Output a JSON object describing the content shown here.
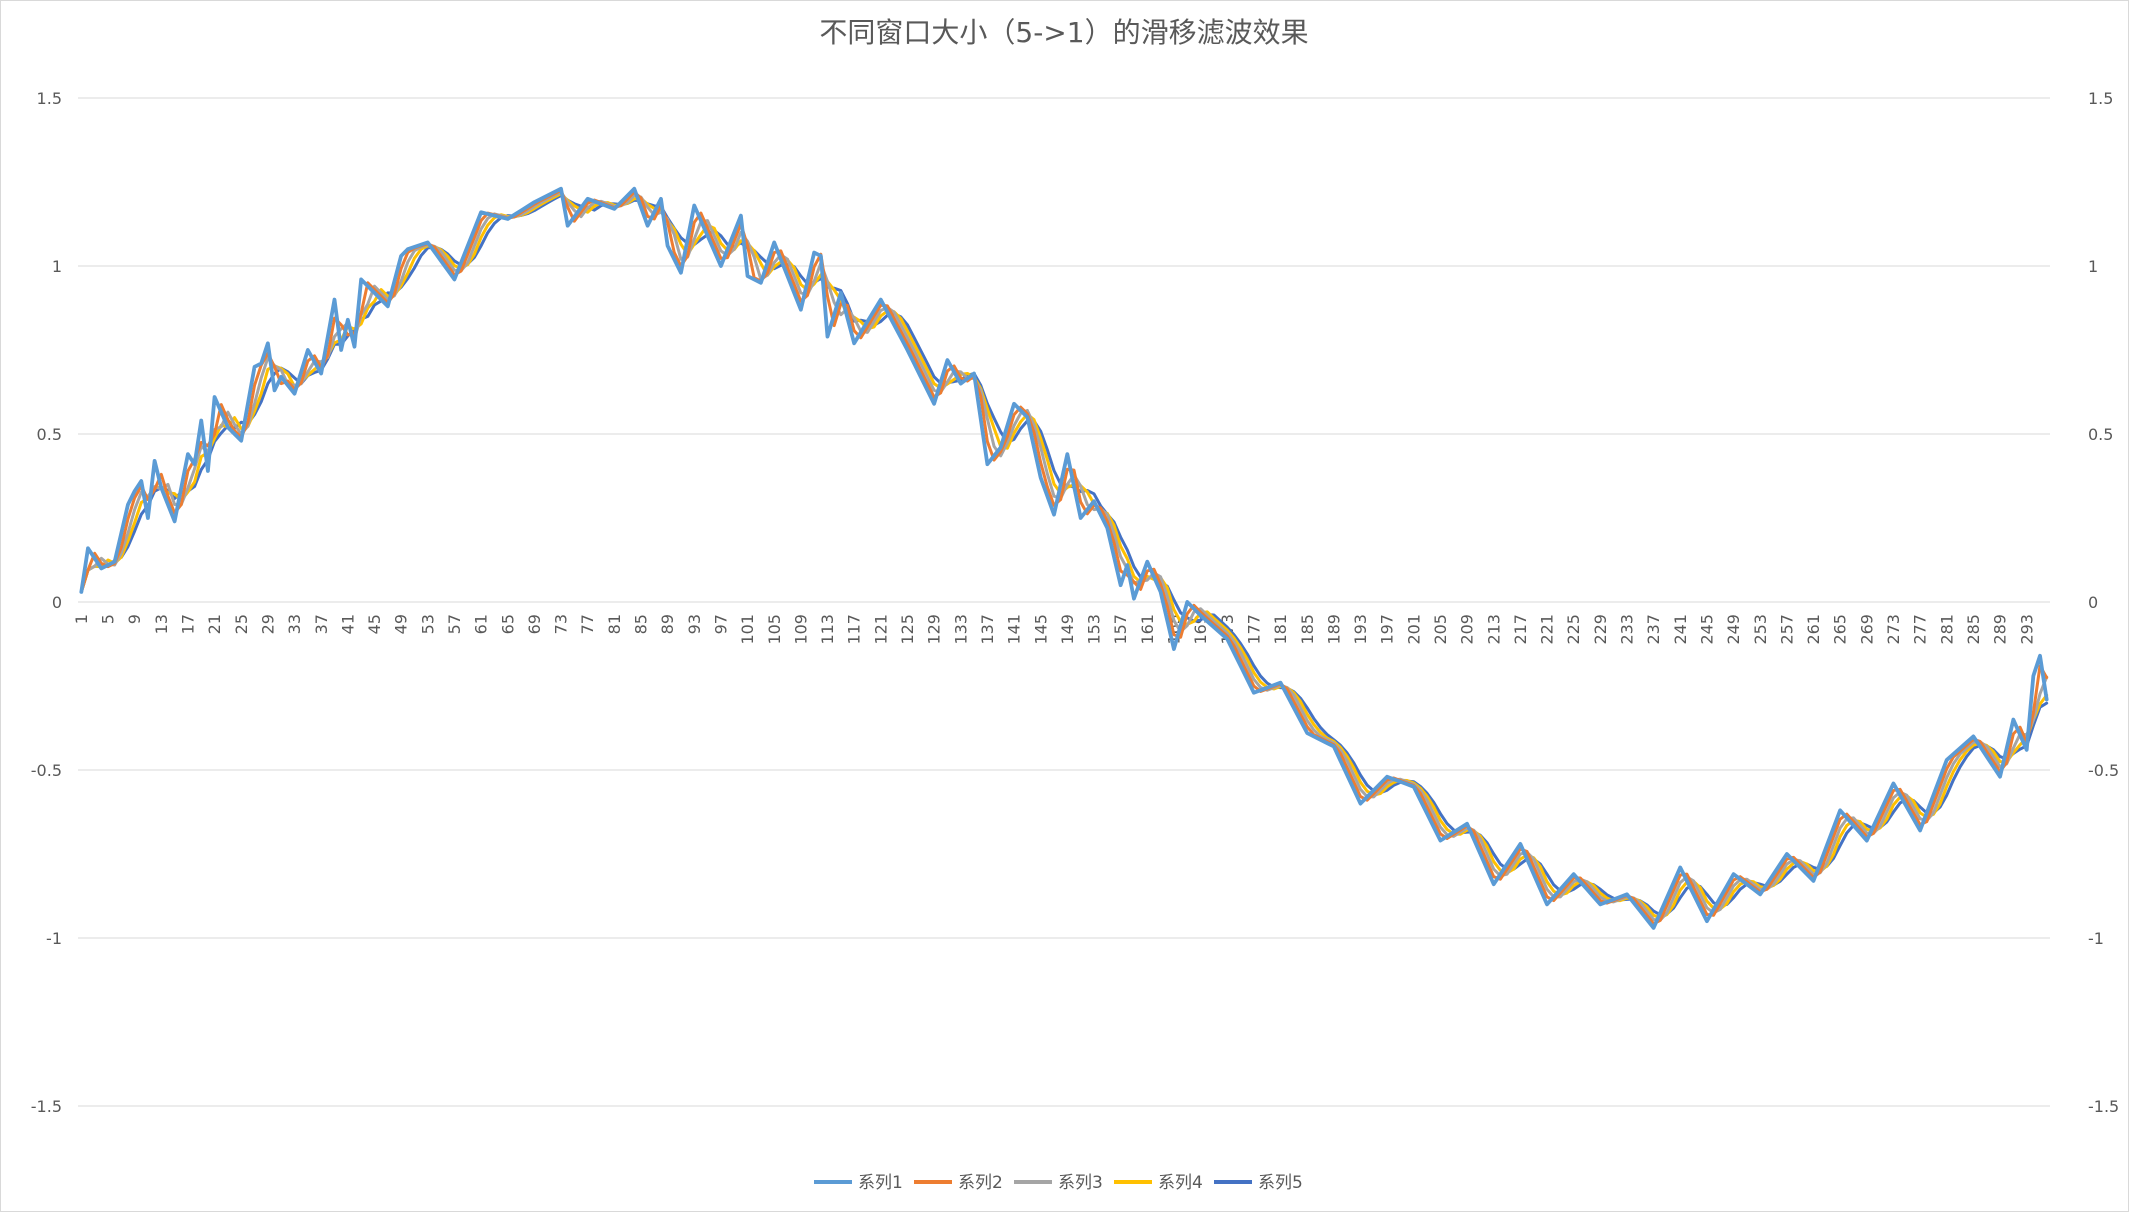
{
  "chart_data": {
    "type": "line",
    "title": "不同窗口大小（5->1）的滑移滤波效果",
    "xlabel": "",
    "ylabel": "",
    "ylim": [
      -1.5,
      1.5
    ],
    "yticks": [
      "1.5",
      "1",
      "0.5",
      "0",
      "-0.5",
      "-1",
      "-1.5"
    ],
    "ytick_values": [
      1.5,
      1,
      0.5,
      0,
      -0.5,
      -1,
      -1.5
    ],
    "x_count": 296,
    "x_tick_step": 4,
    "grid": true,
    "legend_position": "bottom",
    "noisy_series_anchors": {
      "x": [
        1,
        2,
        4,
        6,
        8,
        9,
        10,
        11,
        12,
        13,
        15,
        17,
        18,
        19,
        20,
        21,
        23,
        25,
        27,
        28,
        29,
        30,
        31,
        33,
        35,
        37,
        39,
        40,
        41,
        42,
        43,
        45,
        47,
        49,
        50,
        53,
        57,
        61,
        65,
        69,
        73,
        74,
        77,
        81,
        84,
        86,
        88,
        89,
        91,
        93,
        97,
        100,
        101,
        103,
        105,
        109,
        111,
        112,
        113,
        115,
        117,
        121,
        125,
        129,
        131,
        133,
        135,
        137,
        139,
        141,
        143,
        145,
        147,
        149,
        151,
        153,
        155,
        157,
        158,
        159,
        161,
        163,
        165,
        167,
        169,
        173,
        177,
        181,
        185,
        189,
        193,
        197,
        201,
        205,
        209,
        213,
        217,
        221,
        225,
        229,
        233,
        237,
        241,
        245,
        249,
        253,
        257,
        261,
        265,
        269,
        273,
        277,
        281,
        285,
        289,
        291,
        293,
        294,
        295,
        296
      ],
      "y": [
        0.03,
        0.16,
        0.1,
        0.12,
        0.29,
        0.33,
        0.36,
        0.25,
        0.42,
        0.34,
        0.24,
        0.44,
        0.41,
        0.54,
        0.39,
        0.61,
        0.52,
        0.48,
        0.7,
        0.71,
        0.77,
        0.63,
        0.67,
        0.62,
        0.75,
        0.68,
        0.9,
        0.75,
        0.84,
        0.76,
        0.96,
        0.92,
        0.88,
        1.03,
        1.05,
        1.07,
        0.96,
        1.16,
        1.14,
        1.19,
        1.23,
        1.12,
        1.2,
        1.17,
        1.23,
        1.12,
        1.2,
        1.06,
        0.98,
        1.18,
        1.0,
        1.15,
        0.97,
        0.95,
        1.07,
        0.87,
        1.04,
        1.03,
        0.79,
        0.92,
        0.77,
        0.9,
        0.75,
        0.59,
        0.72,
        0.65,
        0.68,
        0.41,
        0.46,
        0.59,
        0.55,
        0.37,
        0.26,
        0.44,
        0.25,
        0.3,
        0.22,
        0.05,
        0.11,
        0.01,
        0.12,
        0.03,
        -0.14,
        0.0,
        -0.04,
        -0.11,
        -0.27,
        -0.24,
        -0.39,
        -0.43,
        -0.6,
        -0.52,
        -0.55,
        -0.71,
        -0.66,
        -0.84,
        -0.72,
        -0.9,
        -0.81,
        -0.9,
        -0.87,
        -0.97,
        -0.79,
        -0.95,
        -0.81,
        -0.87,
        -0.75,
        -0.83,
        -0.62,
        -0.71,
        -0.54,
        -0.68,
        -0.47,
        -0.4,
        -0.52,
        -0.35,
        -0.44,
        -0.22,
        -0.16,
        -0.29
      ]
    },
    "series": [
      {
        "name": "系列1",
        "color": "#5B9BD5",
        "window": 1
      },
      {
        "name": "系列2",
        "color": "#ED7D31",
        "window": 2
      },
      {
        "name": "系列3",
        "color": "#A5A5A5",
        "window": 3
      },
      {
        "name": "系列4",
        "color": "#FFC000",
        "window": 4
      },
      {
        "name": "系列5",
        "color": "#4472C4",
        "window": 5
      }
    ]
  }
}
